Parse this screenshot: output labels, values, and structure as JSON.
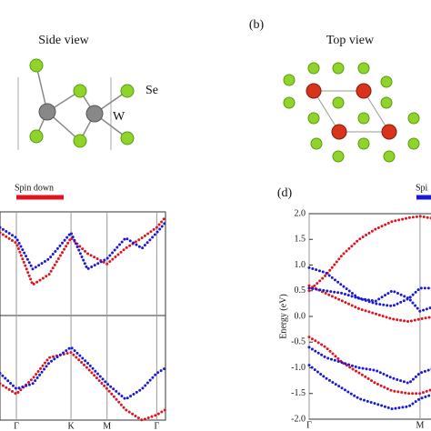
{
  "labels": {
    "panel_b": "(b)",
    "panel_d": "(d)",
    "side_view": "Side view",
    "top_view": "Top view",
    "se": "Se",
    "w": "W"
  },
  "chart_data": [
    {
      "type": "line",
      "x": [
        -0.3,
        0,
        0.3,
        0.6,
        1,
        1.3,
        1.66,
        2,
        2.3,
        2.57,
        2.73
      ],
      "xlim": [
        -0.3,
        2.73
      ],
      "xticks": [
        {
          "value": 0,
          "label": "Γ"
        },
        {
          "value": 1,
          "label": "K"
        },
        {
          "value": 1.66,
          "label": "M"
        },
        {
          "value": 2.57,
          "label": "Γ"
        }
      ],
      "ylim": [
        -2,
        2
      ],
      "series": [
        {
          "name": "Spin down",
          "color": "#e0141e",
          "bands": [
            [
              1.6,
              1.4,
              0.6,
              0.8,
              1.5,
              1.2,
              1.0,
              1.3,
              1.5,
              1.7,
              1.9
            ],
            [
              -1.3,
              -1.5,
              -1.2,
              -0.8,
              -0.7,
              -1.0,
              -1.4,
              -1.8,
              -2.0,
              -1.9,
              -1.8
            ]
          ]
        },
        {
          "color": "#1a1ad6",
          "bands": [
            [
              1.7,
              1.5,
              0.9,
              1.1,
              1.6,
              0.9,
              1.1,
              1.5,
              1.3,
              1.6,
              1.8
            ],
            [
              -1.1,
              -1.4,
              -1.3,
              -0.9,
              -0.6,
              -0.9,
              -1.3,
              -1.6,
              -1.4,
              -1.1,
              -1.0
            ]
          ]
        }
      ]
    },
    {
      "type": "line",
      "ylabel": "Energy (eV)",
      "x": [
        0,
        0.15,
        0.3,
        0.45,
        0.6,
        0.75,
        0.9,
        1.0,
        1.14
      ],
      "xlim": [
        0,
        1.14
      ],
      "xticks": [
        {
          "value": 0,
          "label": "Γ"
        },
        {
          "value": 1,
          "label": "M"
        }
      ],
      "ylim": [
        -2,
        2
      ],
      "yticks": [
        {
          "value": 2,
          "label": "2.0"
        },
        {
          "value": 1.5,
          "label": "1.5"
        },
        {
          "value": 1,
          "label": "1.0"
        },
        {
          "value": 0.5,
          "label": "0.5"
        },
        {
          "value": 0,
          "label": "0.0"
        },
        {
          "value": -0.5,
          "label": "-0.5"
        },
        {
          "value": -1,
          "label": "-1.0"
        },
        {
          "value": -1.5,
          "label": "-1.5"
        },
        {
          "value": -2,
          "label": "-2.0"
        }
      ],
      "series": [
        {
          "color": "#e0141e",
          "bands": [
            [
              0.5,
              0.8,
              1.2,
              1.5,
              1.7,
              1.85,
              1.92,
              1.95,
              1.9
            ],
            [
              0.6,
              0.45,
              0.3,
              0.15,
              0.05,
              -0.05,
              -0.1,
              -0.05,
              0.0
            ],
            [
              -0.4,
              -0.6,
              -0.9,
              -1.1,
              -1.3,
              -1.45,
              -1.5,
              -1.5,
              -1.4
            ]
          ]
        },
        {
          "name": "Spi",
          "color": "#1a1ad6",
          "bands": [
            [
              0.95,
              0.85,
              0.6,
              0.35,
              0.3,
              0.5,
              0.35,
              0.1,
              0.2
            ],
            [
              0.55,
              0.5,
              0.45,
              0.35,
              0.25,
              0.2,
              0.35,
              0.55,
              0.55
            ],
            [
              -0.6,
              -0.8,
              -0.9,
              -1.0,
              -1.05,
              -1.2,
              -1.3,
              -1.1,
              -1.0
            ],
            [
              -0.95,
              -1.2,
              -1.4,
              -1.6,
              -1.7,
              -1.8,
              -1.75,
              -1.6,
              -1.5
            ]
          ]
        }
      ]
    }
  ]
}
